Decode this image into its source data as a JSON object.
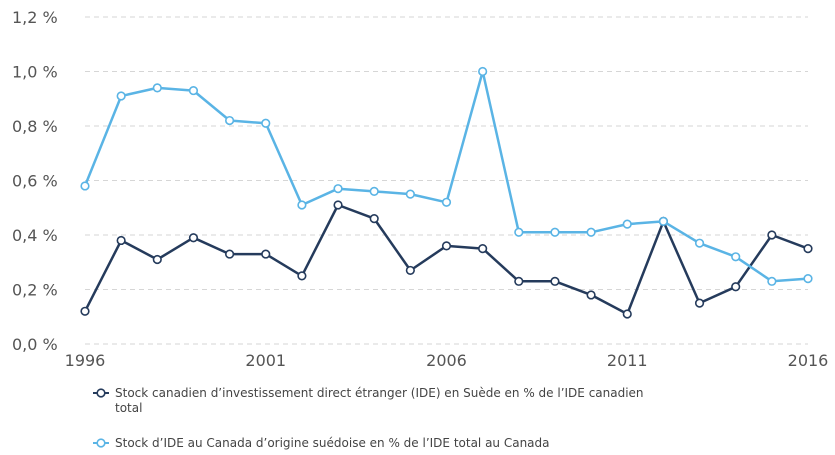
{
  "chart_data": {
    "type": "line",
    "x": [
      1996,
      1997,
      1998,
      1999,
      2000,
      2001,
      2002,
      2003,
      2004,
      2005,
      2006,
      2007,
      2008,
      2009,
      2010,
      2011,
      2012,
      2013,
      2014,
      2015,
      2016
    ],
    "xticks": [
      1996,
      2001,
      2006,
      2011,
      2016
    ],
    "xtick_labels": [
      "1996",
      "2001",
      "2006",
      "2011",
      "2016"
    ],
    "xlim": [
      1996,
      2016
    ],
    "ylim": [
      0,
      1.2
    ],
    "yticks": [
      0,
      0.2,
      0.4,
      0.6,
      0.8,
      1.0,
      1.2
    ],
    "ytick_labels": [
      "0,0 %",
      "0,2 %",
      "0,4 %",
      "0,6 %",
      "0,8 %",
      "1,0 %",
      "1,2 %"
    ],
    "grid": true,
    "legend_position": "bottom",
    "series": [
      {
        "name": "Stock canadien d’investissement direct étranger (IDE) en Suède en % de l’IDE canadien total",
        "legend_lines": [
          "Stock canadien d’investissement direct étranger (IDE) en Suède en % de l’IDE canadien",
          "total"
        ],
        "color": "#253b5c",
        "values": [
          0.12,
          0.38,
          0.31,
          0.39,
          0.33,
          0.33,
          0.25,
          0.51,
          0.46,
          0.27,
          0.36,
          0.35,
          0.23,
          0.23,
          0.18,
          0.11,
          0.45,
          0.15,
          0.21,
          0.4,
          0.35
        ]
      },
      {
        "name": "Stock d’IDE au Canada d’origine suédoise en % de l’IDE total au Canada",
        "legend_lines": [
          "Stock d’IDE au Canada d’origine suédoise en % de l’IDE total au Canada"
        ],
        "color": "#5ab4e5",
        "values": [
          0.58,
          0.91,
          0.94,
          0.93,
          0.82,
          0.81,
          0.51,
          0.57,
          0.56,
          0.55,
          0.52,
          1.0,
          0.41,
          0.41,
          0.41,
          0.44,
          0.45,
          0.37,
          0.32,
          0.23,
          0.24
        ]
      }
    ]
  }
}
